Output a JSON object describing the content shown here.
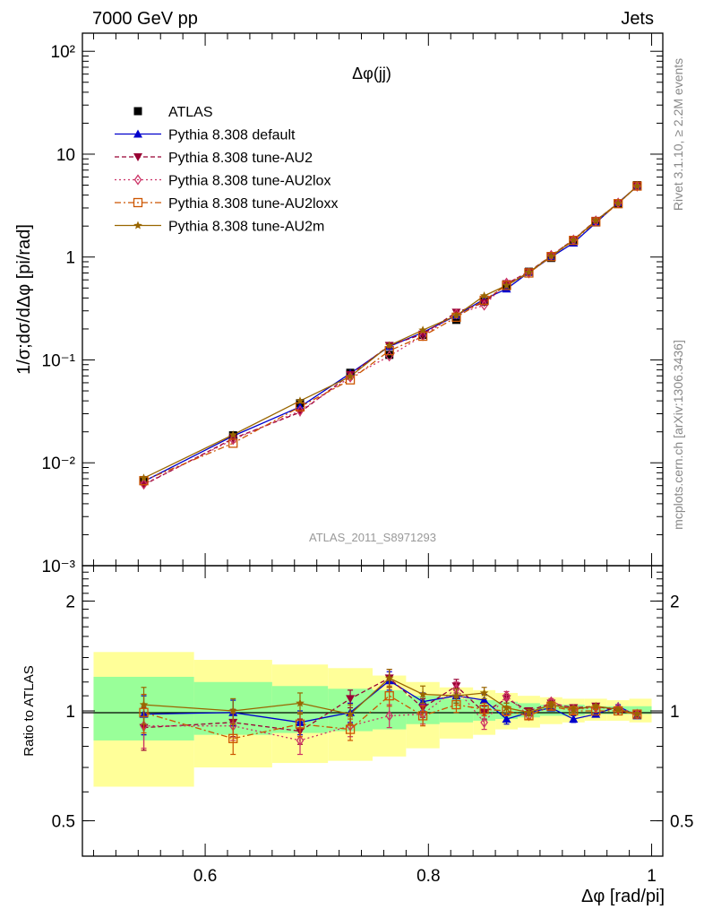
{
  "header": {
    "left": "7000 GeV pp",
    "right": "Jets"
  },
  "side_labels": {
    "rivet": "Rivet 3.1.10, ≥ 2.2M events",
    "mcplots": "mcplots.cern.ch [arXiv:1306.3436]"
  },
  "chart_data": [
    {
      "type": "line",
      "title": "Δφ(jj)",
      "watermark": "ATLAS_2011_S8971293",
      "xlabel": "Δφ [rad/pi]",
      "ylabel": "1/σ;dσ/dΔφ [pi/rad]",
      "yscale": "log",
      "xlim": [
        0.49,
        1.01
      ],
      "ylim": [
        0.001,
        150
      ],
      "y_ticks": [
        {
          "v": 0.001,
          "label": "10⁻³"
        },
        {
          "v": 0.01,
          "label": "10⁻²"
        },
        {
          "v": 0.1,
          "label": "10⁻¹"
        },
        {
          "v": 1,
          "label": "1"
        },
        {
          "v": 10,
          "label": "10"
        },
        {
          "v": 100,
          "label": "10²"
        }
      ],
      "legend_position": "top-left",
      "x": [
        0.545,
        0.625,
        0.685,
        0.73,
        0.765,
        0.795,
        0.825,
        0.85,
        0.87,
        0.89,
        0.91,
        0.93,
        0.95,
        0.97,
        0.987
      ],
      "series": [
        {
          "name": "ATLAS",
          "color": "#000000",
          "marker": "square",
          "dash": "none",
          "values": [
            0.0068,
            0.0185,
            0.038,
            0.075,
            0.112,
            0.175,
            0.245,
            0.37,
            0.52,
            0.72,
            0.98,
            1.45,
            2.2,
            3.3,
            5.0
          ]
        },
        {
          "name": "Pythia 8.308 default",
          "color": "#0000cc",
          "marker": "triangle-up",
          "dash": "none",
          "values": [
            0.0066,
            0.0182,
            0.035,
            0.074,
            0.135,
            0.185,
            0.27,
            0.39,
            0.49,
            0.71,
            1.0,
            1.37,
            2.15,
            3.38,
            4.85
          ]
        },
        {
          "name": "Pythia 8.308 tune-AU2",
          "color": "#990033",
          "marker": "triangle-down",
          "dash": "5,3",
          "values": [
            0.0061,
            0.0172,
            0.031,
            0.072,
            0.138,
            0.178,
            0.29,
            0.36,
            0.55,
            0.72,
            1.03,
            1.48,
            2.27,
            3.32,
            4.9
          ]
        },
        {
          "name": "Pythia 8.308 tune-AU2lox",
          "color": "#cc3366",
          "marker": "diamond-open",
          "dash": "2,3",
          "values": [
            0.0062,
            0.0168,
            0.032,
            0.068,
            0.109,
            0.172,
            0.28,
            0.34,
            0.56,
            0.7,
            1.04,
            1.47,
            2.25,
            3.36,
            4.88
          ]
        },
        {
          "name": "Pythia 8.308 tune-AU2loxx",
          "color": "#cc5500",
          "marker": "square-open",
          "dash": "7,3,2,3",
          "values": [
            0.0067,
            0.0155,
            0.035,
            0.064,
            0.123,
            0.17,
            0.26,
            0.38,
            0.53,
            0.7,
            1.01,
            1.45,
            2.2,
            3.3,
            4.9
          ]
        },
        {
          "name": "Pythia 8.308 tune-AU2m",
          "color": "#996600",
          "marker": "star",
          "dash": "none",
          "values": [
            0.0071,
            0.0187,
            0.04,
            0.069,
            0.138,
            0.195,
            0.27,
            0.42,
            0.53,
            0.71,
            1.02,
            1.46,
            2.26,
            3.33,
            4.9
          ]
        }
      ]
    },
    {
      "type": "line",
      "ylabel": "Ratio to ATLAS",
      "xlabel": "Δφ [rad/pi]",
      "yscale": "log",
      "xlim": [
        0.49,
        1.01
      ],
      "ylim": [
        0.4,
        2.5
      ],
      "x_ticks": [
        {
          "v": 0.6,
          "label": "0.6"
        },
        {
          "v": 0.8,
          "label": "0.8"
        },
        {
          "v": 1.0,
          "label": "1"
        }
      ],
      "y_ticks": [
        {
          "v": 0.5,
          "label": "0.5"
        },
        {
          "v": 1,
          "label": "1"
        },
        {
          "v": 2,
          "label": "2"
        }
      ],
      "bands": {
        "edges": [
          0.5,
          0.59,
          0.66,
          0.71,
          0.75,
          0.78,
          0.81,
          0.84,
          0.86,
          0.88,
          0.9,
          0.92,
          0.94,
          0.96,
          0.98,
          1.0
        ],
        "inner_lo": [
          0.83,
          0.86,
          0.87,
          0.88,
          0.89,
          0.92,
          0.93,
          0.94,
          0.95,
          0.96,
          0.97,
          0.97,
          0.98,
          0.98,
          0.98
        ],
        "inner_hi": [
          1.24,
          1.2,
          1.17,
          1.15,
          1.14,
          1.1,
          1.08,
          1.07,
          1.06,
          1.05,
          1.04,
          1.04,
          1.03,
          1.03,
          1.03
        ],
        "outer_lo": [
          0.62,
          0.7,
          0.72,
          0.73,
          0.75,
          0.79,
          0.84,
          0.86,
          0.89,
          0.9,
          0.92,
          0.93,
          0.94,
          0.94,
          0.93
        ],
        "outer_hi": [
          1.45,
          1.38,
          1.34,
          1.31,
          1.25,
          1.2,
          1.16,
          1.14,
          1.12,
          1.1,
          1.09,
          1.08,
          1.08,
          1.07,
          1.08
        ],
        "inner_color": "#99ff99",
        "outer_color": "#ffff99"
      },
      "x": [
        0.545,
        0.625,
        0.685,
        0.73,
        0.765,
        0.795,
        0.825,
        0.85,
        0.87,
        0.89,
        0.91,
        0.93,
        0.95,
        0.97,
        0.987
      ],
      "series": [
        {
          "name": "Pythia 8.308 default",
          "color": "#0000cc",
          "marker": "triangle-up",
          "dash": "none",
          "values": [
            0.98,
            0.99,
            0.93,
            0.99,
            1.21,
            1.06,
            1.1,
            1.07,
            0.95,
            0.99,
            1.02,
            0.95,
            0.98,
            1.03,
            0.97
          ],
          "err": [
            0.12,
            0.08,
            0.07,
            0.06,
            0.07,
            0.06,
            0.05,
            0.04,
            0.03,
            0.02,
            0.02,
            0.02,
            0.01,
            0.01,
            0.01
          ]
        },
        {
          "name": "Pythia 8.308 tune-AU2",
          "color": "#990033",
          "marker": "triangle-down",
          "dash": "5,3",
          "values": [
            0.9,
            0.93,
            0.88,
            1.08,
            1.23,
            1.02,
            1.17,
            0.99,
            1.08,
            1.0,
            1.05,
            1.02,
            1.03,
            1.0,
            0.98
          ],
          "err": [
            0.12,
            0.08,
            0.07,
            0.06,
            0.07,
            0.06,
            0.05,
            0.04,
            0.03,
            0.02,
            0.02,
            0.02,
            0.01,
            0.01,
            0.01
          ]
        },
        {
          "name": "Pythia 8.308 tune-AU2lox",
          "color": "#cc3366",
          "marker": "diamond-open",
          "dash": "2,3",
          "values": [
            0.91,
            0.91,
            0.83,
            0.91,
            0.97,
            0.98,
            1.15,
            0.93,
            1.1,
            0.97,
            1.06,
            1.01,
            1.02,
            1.02,
            0.98
          ],
          "err": [
            0.12,
            0.08,
            0.07,
            0.06,
            0.07,
            0.06,
            0.05,
            0.04,
            0.03,
            0.02,
            0.02,
            0.02,
            0.01,
            0.01,
            0.01
          ]
        },
        {
          "name": "Pythia 8.308 tune-AU2loxx",
          "color": "#cc5500",
          "marker": "square-open",
          "dash": "7,3,2,3",
          "values": [
            0.99,
            0.84,
            0.92,
            0.89,
            1.1,
            0.97,
            1.04,
            1.01,
            1.0,
            0.97,
            1.03,
            1.0,
            1.0,
            1.0,
            0.98
          ],
          "err": [
            0.12,
            0.08,
            0.07,
            0.06,
            0.07,
            0.06,
            0.05,
            0.04,
            0.03,
            0.02,
            0.02,
            0.02,
            0.01,
            0.01,
            0.01
          ]
        },
        {
          "name": "Pythia 8.308 tune-AU2m",
          "color": "#996600",
          "marker": "star",
          "dash": "none",
          "values": [
            1.04,
            1.0,
            1.05,
            0.98,
            1.23,
            1.11,
            1.1,
            1.12,
            1.02,
            0.99,
            1.04,
            1.01,
            1.03,
            1.01,
            0.98
          ],
          "err": [
            0.12,
            0.08,
            0.07,
            0.06,
            0.07,
            0.06,
            0.05,
            0.04,
            0.03,
            0.02,
            0.02,
            0.02,
            0.01,
            0.01,
            0.01
          ]
        }
      ]
    }
  ]
}
